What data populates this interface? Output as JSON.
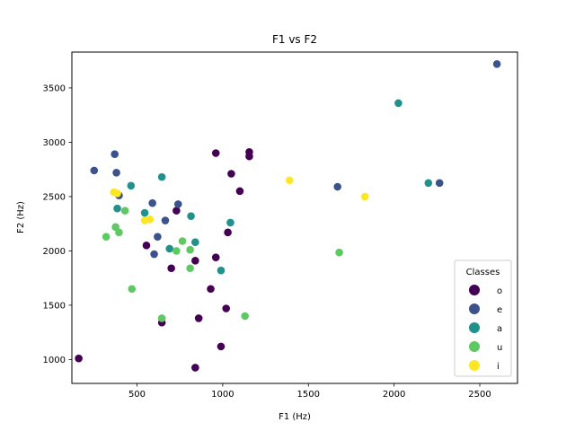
{
  "chart_data": {
    "type": "scatter",
    "title": "F1 vs F2",
    "xlabel": "F1 (Hz)",
    "ylabel": "F2 (Hz)",
    "xlim": [
      120,
      2720
    ],
    "ylim": [
      780,
      3830
    ],
    "xticks": [
      500,
      1000,
      1500,
      2000,
      2500
    ],
    "yticks": [
      1000,
      1500,
      2000,
      2500,
      3000,
      3500
    ],
    "grid": false,
    "legend": {
      "title": "Classes",
      "position": "lower right"
    },
    "series": [
      {
        "name": "o",
        "color": "#440154",
        "points": [
          [
            160,
            1010
          ],
          [
            555,
            2050
          ],
          [
            645,
            1340
          ],
          [
            700,
            1840
          ],
          [
            730,
            2370
          ],
          [
            840,
            1910
          ],
          [
            840,
            925
          ],
          [
            860,
            1380
          ],
          [
            930,
            1650
          ],
          [
            960,
            2900
          ],
          [
            960,
            1940
          ],
          [
            990,
            1120
          ],
          [
            1020,
            1470
          ],
          [
            1030,
            2170
          ],
          [
            1050,
            2710
          ],
          [
            1100,
            2550
          ],
          [
            1155,
            2910
          ],
          [
            1155,
            2870
          ]
        ]
      },
      {
        "name": "e",
        "color": "#3b528b",
        "points": [
          [
            250,
            2740
          ],
          [
            370,
            2890
          ],
          [
            380,
            2720
          ],
          [
            395,
            2510
          ],
          [
            590,
            2440
          ],
          [
            600,
            1970
          ],
          [
            620,
            2130
          ],
          [
            665,
            2280
          ],
          [
            740,
            2430
          ],
          [
            1670,
            2590
          ],
          [
            2265,
            2625
          ],
          [
            2600,
            3720
          ]
        ]
      },
      {
        "name": "a",
        "color": "#21918c",
        "points": [
          [
            385,
            2390
          ],
          [
            465,
            2600
          ],
          [
            545,
            2350
          ],
          [
            645,
            2680
          ],
          [
            690,
            2020
          ],
          [
            815,
            2320
          ],
          [
            840,
            2080
          ],
          [
            990,
            1820
          ],
          [
            1045,
            2260
          ],
          [
            2025,
            3360
          ],
          [
            2200,
            2625
          ]
        ]
      },
      {
        "name": "u",
        "color": "#5ec962",
        "points": [
          [
            320,
            2130
          ],
          [
            375,
            2220
          ],
          [
            395,
            2170
          ],
          [
            430,
            2370
          ],
          [
            470,
            1650
          ],
          [
            645,
            1380
          ],
          [
            730,
            2000
          ],
          [
            765,
            2090
          ],
          [
            810,
            1840
          ],
          [
            810,
            2010
          ],
          [
            1130,
            1400
          ],
          [
            1680,
            1985
          ]
        ]
      },
      {
        "name": "i",
        "color": "#fde725",
        "points": [
          [
            365,
            2540
          ],
          [
            385,
            2530
          ],
          [
            545,
            2280
          ],
          [
            575,
            2290
          ],
          [
            1390,
            2650
          ],
          [
            1830,
            2500
          ]
        ]
      }
    ]
  }
}
